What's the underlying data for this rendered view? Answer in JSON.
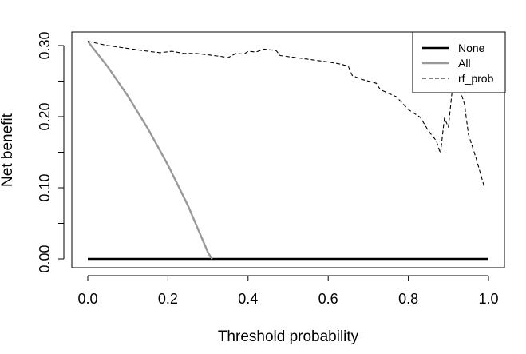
{
  "chart_data": {
    "type": "line",
    "title": "",
    "xlabel": "Threshold probability",
    "ylabel": "Net benefit",
    "xlim": [
      0.0,
      1.0
    ],
    "ylim": [
      0.0,
      0.3
    ],
    "x_ticks": [
      0.0,
      0.2,
      0.4,
      0.6,
      0.8,
      1.0
    ],
    "x_tick_labels": [
      "0.0",
      "0.2",
      "0.4",
      "0.6",
      "0.8",
      "1.0"
    ],
    "y_ticks": [
      0.0,
      0.05,
      0.1,
      0.15,
      0.2,
      0.25,
      0.3
    ],
    "y_tick_labels": [
      "0.00",
      "",
      "0.10",
      "",
      "0.20",
      "",
      "0.30"
    ],
    "grid": false,
    "legend_position": "top-right",
    "series": [
      {
        "name": "None",
        "color": "#000000",
        "style": "solid",
        "x": [
          0.0,
          1.0
        ],
        "y": [
          0.0,
          0.0
        ]
      },
      {
        "name": "All",
        "color": "#999999",
        "style": "solid",
        "x": [
          0.0,
          0.05,
          0.1,
          0.15,
          0.2,
          0.25,
          0.3,
          0.31
        ],
        "y": [
          0.306,
          0.27,
          0.229,
          0.183,
          0.132,
          0.075,
          0.009,
          0.0
        ]
      },
      {
        "name": "rf_prob",
        "color": "#000000",
        "style": "dashed",
        "x": [
          0.0,
          0.05,
          0.1,
          0.15,
          0.18,
          0.21,
          0.24,
          0.27,
          0.3,
          0.33,
          0.35,
          0.37,
          0.39,
          0.4,
          0.42,
          0.44,
          0.47,
          0.48,
          0.52,
          0.56,
          0.6,
          0.63,
          0.65,
          0.66,
          0.68,
          0.72,
          0.73,
          0.77,
          0.8,
          0.83,
          0.85,
          0.87,
          0.88,
          0.89,
          0.9,
          0.91,
          0.92,
          0.93,
          0.94,
          0.95,
          0.97,
          0.99
        ],
        "y": [
          0.306,
          0.3,
          0.296,
          0.292,
          0.29,
          0.292,
          0.289,
          0.289,
          0.287,
          0.285,
          0.283,
          0.289,
          0.288,
          0.292,
          0.291,
          0.295,
          0.293,
          0.286,
          0.283,
          0.28,
          0.277,
          0.274,
          0.271,
          0.258,
          0.253,
          0.247,
          0.238,
          0.228,
          0.21,
          0.199,
          0.18,
          0.166,
          0.148,
          0.198,
          0.185,
          0.24,
          0.245,
          0.235,
          0.218,
          0.175,
          0.14,
          0.1
        ]
      }
    ]
  }
}
